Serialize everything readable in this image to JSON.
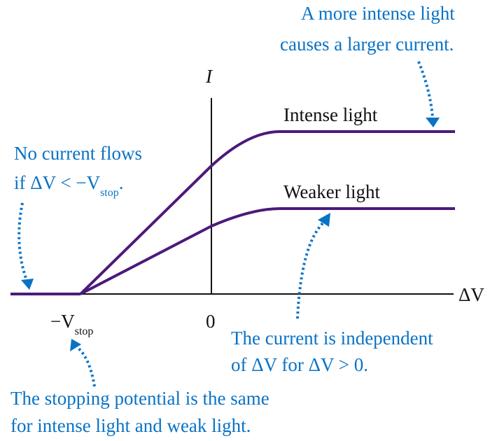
{
  "axes": {
    "x_label": "ΔV",
    "y_label": "I",
    "origin_label": "0",
    "stop_label": {
      "main": "−V",
      "sub": "stop"
    }
  },
  "curves": [
    {
      "label": "Intense light"
    },
    {
      "label": "Weaker light"
    }
  ],
  "annotations": {
    "top": [
      "A more intense light",
      "causes a larger current."
    ],
    "left": {
      "line1": "No current flows",
      "line2": {
        "main": "if ΔV < −V",
        "sub": "stop",
        "end": "."
      }
    },
    "right": [
      "The current is independent",
      "of ΔV for ΔV > 0."
    ],
    "bottom": [
      "The stopping potential is the same",
      "for intense light and weak light."
    ]
  }
}
